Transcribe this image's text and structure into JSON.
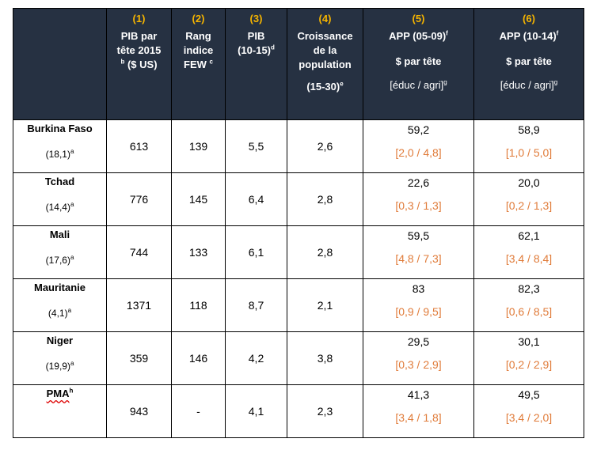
{
  "headers": [
    {
      "num": "",
      "lines": []
    },
    {
      "num": "(1)",
      "lines": [
        "PIB par",
        "tête 2015",
        "($ US)"
      ],
      "sup_before_last": "b"
    },
    {
      "num": "(2)",
      "lines": [
        "Rang",
        "indice",
        "FEW"
      ],
      "sup_after_last": "c"
    },
    {
      "num": "(3)",
      "lines": [
        "PIB",
        "(10-15)"
      ],
      "sup_after_last": "d"
    },
    {
      "num": "(4)",
      "lines": [
        "Croissance",
        "de la",
        "population"
      ],
      "extra": "(15-30)",
      "extra_sup": "e"
    },
    {
      "num": "(5)",
      "title": "APP (05-09)",
      "title_sup": "f",
      "sub": "$ par tête",
      "sub2": "[éduc / agri]",
      "sub2_sup": "g"
    },
    {
      "num": "(6)",
      "title": "APP (10-14)",
      "title_sup": "f",
      "sub": "$ par tête",
      "sub2": "[éduc / agri]",
      "sub2_sup": "g"
    }
  ],
  "rows": [
    {
      "country": "Burkina Faso",
      "pop": "(18,1)",
      "pop_sup": "a",
      "pib": "613",
      "rang": "139",
      "pib_growth": "5,5",
      "croissance": "2,6",
      "app0509": "59,2",
      "app0509_split": "[2,0 / 4,8]",
      "app1014": "58,9",
      "app1014_split": "[1,0 / 5,0]"
    },
    {
      "country": "Tchad",
      "pop": "(14,4)",
      "pop_sup": "a",
      "pib": "776",
      "rang": "145",
      "pib_growth": "6,4",
      "croissance": "2,8",
      "app0509": "22,6",
      "app0509_split": "[0,3 / 1,3]",
      "app1014": "20,0",
      "app1014_split": "[0,2 / 1,3]"
    },
    {
      "country": "Mali",
      "pop": "(17,6)",
      "pop_sup": "a",
      "pib": "744",
      "rang": "133",
      "pib_growth": "6,1",
      "croissance": "2,8",
      "app0509": "59,5",
      "app0509_split": "[4,8 / 7,3]",
      "app1014": "62,1",
      "app1014_split": "[3,4 / 8,4]"
    },
    {
      "country": "Mauritanie",
      "pop": "(4,1)",
      "pop_sup": "a",
      "pib": "1371",
      "rang": "118",
      "pib_growth": "8,7",
      "croissance": "2,1",
      "app0509": "83",
      "app0509_split": "[0,9 / 9,5]",
      "app1014": "82,3",
      "app1014_split": "[0,6 / 8,5]"
    },
    {
      "country": "Niger",
      "pop": "(19,9)",
      "pop_sup": "a",
      "pib": "359",
      "rang": "146",
      "pib_growth": "4,2",
      "croissance": "3,8",
      "app0509": "29,5",
      "app0509_split": "[0,3 / 2,9]",
      "app1014": "30,1",
      "app1014_split": "[0,2 / 2,9]"
    },
    {
      "country": "PMA",
      "country_sup": "h",
      "pop": "",
      "pib": "943",
      "rang": "-",
      "pib_growth": "4,1",
      "croissance": "2,3",
      "app0509": "41,3",
      "app0509_split": "[3,4 / 1,8]",
      "app1014": "49,5",
      "app1014_split": "[3,4 / 2,0]"
    }
  ]
}
